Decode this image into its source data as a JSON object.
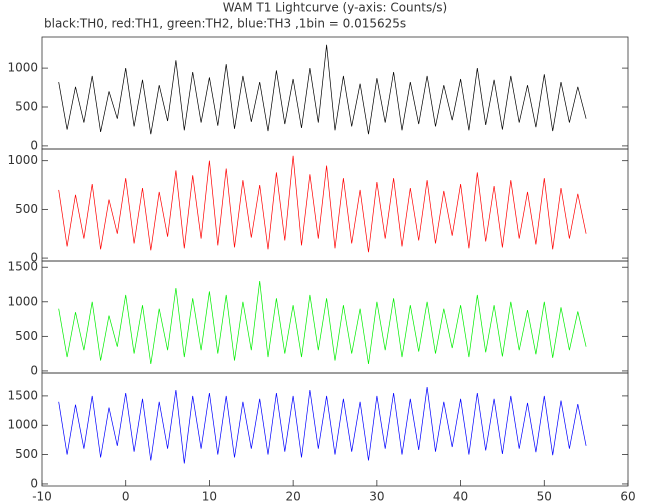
{
  "chart_data": [
    {
      "type": "line",
      "title": "WAM T1 Lightcurve (y-axis: Counts/s)",
      "subtitle": "black:TH0, red:TH1, green:TH2, blue:TH3 ,1bin = 0.015625s",
      "x": [
        -8,
        -7,
        -6,
        -5,
        -4,
        -3,
        -2,
        -1,
        0,
        1,
        2,
        3,
        4,
        5,
        6,
        7,
        8,
        9,
        10,
        11,
        12,
        13,
        14,
        15,
        16,
        17,
        18,
        19,
        20,
        21,
        22,
        23,
        24,
        25,
        26,
        27,
        28,
        29,
        30,
        31,
        32,
        33,
        34,
        35,
        36,
        37,
        38,
        39,
        40,
        41,
        42,
        43,
        44,
        45,
        46,
        47,
        48,
        49,
        50,
        51,
        52,
        53,
        54,
        55
      ],
      "series": [
        {
          "color": "#000000",
          "values": [
            820,
            210,
            760,
            300,
            900,
            180,
            700,
            350,
            1000,
            250,
            850,
            150,
            780,
            320,
            1100,
            200,
            950,
            300,
            880,
            260,
            1050,
            220,
            900,
            310,
            820,
            190,
            970,
            280,
            860,
            230,
            1000,
            300,
            1300,
            200,
            900,
            250,
            800,
            150,
            870,
            300,
            950,
            200,
            820,
            280,
            900,
            250,
            780,
            330,
            860,
            200,
            1000,
            270,
            850,
            210,
            900,
            300,
            780,
            240,
            920,
            190,
            820,
            300,
            760,
            350
          ]
        }
      ],
      "xlim": [
        -10,
        60
      ],
      "ylim": [
        -40,
        1400
      ],
      "yticks": [
        0,
        500,
        1000
      ]
    },
    {
      "type": "line",
      "x": [
        -8,
        -7,
        -6,
        -5,
        -4,
        -3,
        -2,
        -1,
        0,
        1,
        2,
        3,
        4,
        5,
        6,
        7,
        8,
        9,
        10,
        11,
        12,
        13,
        14,
        15,
        16,
        17,
        18,
        19,
        20,
        21,
        22,
        23,
        24,
        25,
        26,
        27,
        28,
        29,
        30,
        31,
        32,
        33,
        34,
        35,
        36,
        37,
        38,
        39,
        40,
        41,
        42,
        43,
        44,
        45,
        46,
        47,
        48,
        49,
        50,
        51,
        52,
        53,
        54,
        55
      ],
      "series": [
        {
          "color": "#ff0000",
          "values": [
            700,
            120,
            650,
            200,
            760,
            90,
            600,
            250,
            820,
            150,
            720,
            80,
            680,
            220,
            900,
            100,
            850,
            200,
            1000,
            130,
            920,
            110,
            800,
            210,
            750,
            90,
            880,
            180,
            1050,
            130,
            860,
            200,
            950,
            100,
            820,
            150,
            700,
            60,
            780,
            200,
            820,
            120,
            720,
            180,
            800,
            150,
            690,
            230,
            760,
            100,
            880,
            170,
            740,
            110,
            800,
            200,
            680,
            140,
            820,
            90,
            720,
            200,
            660,
            250
          ]
        }
      ],
      "xlim": [
        -10,
        60
      ],
      "ylim": [
        -30,
        1120
      ],
      "yticks": [
        0,
        500,
        1000
      ]
    },
    {
      "type": "line",
      "x": [
        -8,
        -7,
        -6,
        -5,
        -4,
        -3,
        -2,
        -1,
        0,
        1,
        2,
        3,
        4,
        5,
        6,
        7,
        8,
        9,
        10,
        11,
        12,
        13,
        14,
        15,
        16,
        17,
        18,
        19,
        20,
        21,
        22,
        23,
        24,
        25,
        26,
        27,
        28,
        29,
        30,
        31,
        32,
        33,
        34,
        35,
        36,
        37,
        38,
        39,
        40,
        41,
        42,
        43,
        44,
        45,
        46,
        47,
        48,
        49,
        50,
        51,
        52,
        53,
        54,
        55
      ],
      "series": [
        {
          "color": "#00ee00",
          "values": [
            900,
            200,
            850,
            300,
            1000,
            150,
            800,
            350,
            1100,
            250,
            950,
            100,
            900,
            300,
            1200,
            200,
            1050,
            300,
            1150,
            250,
            1100,
            150,
            1000,
            300,
            1300,
            200,
            1050,
            250,
            950,
            200,
            1100,
            300,
            1050,
            150,
            950,
            250,
            900,
            100,
            1000,
            300,
            1050,
            200,
            950,
            280,
            1000,
            250,
            900,
            330,
            950,
            200,
            1100,
            270,
            950,
            210,
            1000,
            300,
            880,
            240,
            1000,
            190,
            920,
            300,
            860,
            350
          ]
        }
      ],
      "xlim": [
        -10,
        60
      ],
      "ylim": [
        -30,
        1590
      ],
      "yticks": [
        0,
        500,
        1000,
        1500
      ]
    },
    {
      "type": "line",
      "x": [
        -8,
        -7,
        -6,
        -5,
        -4,
        -3,
        -2,
        -1,
        0,
        1,
        2,
        3,
        4,
        5,
        6,
        7,
        8,
        9,
        10,
        11,
        12,
        13,
        14,
        15,
        16,
        17,
        18,
        19,
        20,
        21,
        22,
        23,
        24,
        25,
        26,
        27,
        28,
        29,
        30,
        31,
        32,
        33,
        34,
        35,
        36,
        37,
        38,
        39,
        40,
        41,
        42,
        43,
        44,
        45,
        46,
        47,
        48,
        49,
        50,
        51,
        52,
        53,
        54,
        55
      ],
      "series": [
        {
          "color": "#0000ff",
          "values": [
            1400,
            500,
            1350,
            600,
            1500,
            450,
            1300,
            650,
            1550,
            550,
            1450,
            400,
            1400,
            600,
            1600,
            350,
            1500,
            600,
            1550,
            500,
            1500,
            450,
            1400,
            600,
            1450,
            500,
            1550,
            550,
            1500,
            450,
            1600,
            600,
            1500,
            500,
            1450,
            550,
            1400,
            400,
            1500,
            600,
            1550,
            500,
            1450,
            580,
            1650,
            550,
            1400,
            630,
            1450,
            500,
            1550,
            570,
            1450,
            510,
            1500,
            600,
            1380,
            540,
            1500,
            490,
            1420,
            600,
            1360,
            650
          ]
        }
      ],
      "xlim": [
        -10,
        60
      ],
      "ylim": [
        -35,
        1890
      ],
      "yticks": [
        0,
        500,
        1000,
        1500
      ],
      "xticks": [
        -10,
        0,
        10,
        20,
        30,
        40,
        50,
        60
      ]
    }
  ]
}
